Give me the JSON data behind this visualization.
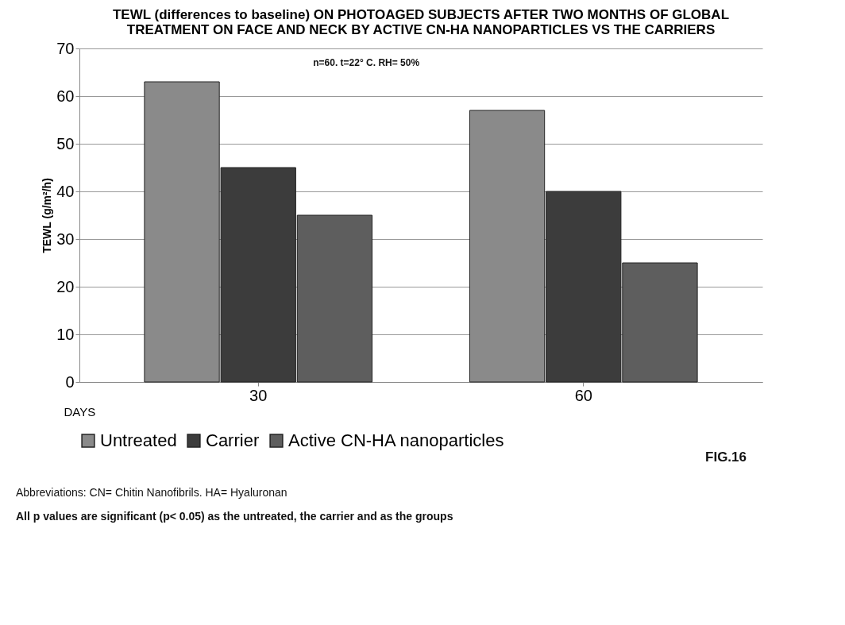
{
  "chart_data": {
    "type": "bar",
    "title": [
      "TEWL (differences to baseline) ON PHOTOAGED SUBJECTS AFTER TWO MONTHS OF GLOBAL",
      "TREATMENT ON FACE AND NECK BY ACTIVE CN-HA NANOPARTICLES VS THE CARRIERS"
    ],
    "xlabel": "DAYS",
    "ylabel": "TEWL (g/m²/h)",
    "categories": [
      "30",
      "60"
    ],
    "series": [
      {
        "name": "Untreated",
        "color": "#8a8a8a",
        "values": [
          63,
          57
        ]
      },
      {
        "name": "Carrier",
        "color": "#3c3c3c",
        "values": [
          45,
          40
        ]
      },
      {
        "name": "Active CN-HA nanoparticles",
        "color": "#5e5e5e",
        "values": [
          35,
          25
        ]
      }
    ],
    "ylim": [
      0,
      70
    ],
    "yticks": [
      0,
      10,
      20,
      30,
      40,
      50,
      60,
      70
    ],
    "grid": "y",
    "legend": "bottom",
    "annotations": [
      "n=60.    t=22° C.    RH= 50%",
      "FIG.16",
      "Abbreviations: CN= Chitin Nanofibrils.     HA= Hyaluronan",
      "All  p values are significant (p< 0.05) as the untreated, the carrier and as the groups"
    ]
  }
}
